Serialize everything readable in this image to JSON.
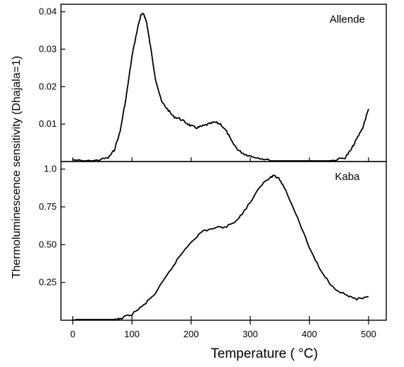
{
  "chart_data": [
    {
      "type": "line",
      "panel": "top",
      "title": "",
      "panel_label": "Allende",
      "xlabel": "Temperature ( °C)",
      "ylabel": "Thermoluminescence sensitivity (Dhajala=1)",
      "xlim": [
        -20,
        530
      ],
      "ylim": [
        0.0,
        0.042
      ],
      "yticks": [
        0.01,
        0.02,
        0.03,
        0.04
      ],
      "ytick_labels": [
        "0.01",
        "0.02",
        "0.03",
        "0.04"
      ],
      "grid": false,
      "series": [
        {
          "x": [
            0,
            20,
            40,
            60,
            70,
            80,
            90,
            100,
            110,
            115,
            120,
            125,
            130,
            140,
            150,
            160,
            170,
            180,
            190,
            200,
            210,
            220,
            230,
            240,
            250,
            260,
            270,
            280,
            290,
            300,
            320,
            340,
            360,
            380,
            400,
            420,
            440,
            460,
            470,
            480,
            490,
            500
          ],
          "y": [
            0.0005,
            0.0,
            0.0003,
            0.001,
            0.003,
            0.008,
            0.017,
            0.028,
            0.036,
            0.039,
            0.0395,
            0.037,
            0.032,
            0.022,
            0.016,
            0.014,
            0.012,
            0.0115,
            0.0105,
            0.0095,
            0.009,
            0.0095,
            0.01,
            0.0105,
            0.01,
            0.008,
            0.005,
            0.003,
            0.002,
            0.0015,
            0.0008,
            0.0,
            0.0,
            0.0,
            0.0,
            0.0,
            0.0003,
            0.001,
            0.003,
            0.006,
            0.009,
            0.014
          ]
        }
      ]
    },
    {
      "type": "line",
      "panel": "bottom",
      "title": "",
      "panel_label": "Kaba",
      "xlabel": "Temperature ( °C)",
      "ylabel": "",
      "xlim": [
        -20,
        530
      ],
      "ylim": [
        0.0,
        1.05
      ],
      "yticks": [
        0.25,
        0.5,
        0.75,
        1.0
      ],
      "ytick_labels": [
        "0.25",
        "0.50",
        "0.75",
        "1.0"
      ],
      "xticks": [
        0,
        100,
        200,
        300,
        400,
        500
      ],
      "xtick_labels": [
        "0",
        "100",
        "200",
        "300",
        "400",
        "500"
      ],
      "grid": false,
      "series": [
        {
          "x": [
            0,
            40,
            70,
            80,
            100,
            120,
            140,
            160,
            180,
            200,
            220,
            240,
            260,
            280,
            300,
            320,
            335,
            340,
            350,
            360,
            380,
            400,
            420,
            440,
            460,
            480,
            500
          ],
          "y": [
            0.0,
            0.0,
            0.0,
            0.01,
            0.04,
            0.1,
            0.18,
            0.3,
            0.42,
            0.52,
            0.59,
            0.61,
            0.62,
            0.67,
            0.78,
            0.9,
            0.95,
            0.96,
            0.93,
            0.86,
            0.68,
            0.48,
            0.32,
            0.22,
            0.17,
            0.14,
            0.15
          ]
        }
      ]
    }
  ]
}
